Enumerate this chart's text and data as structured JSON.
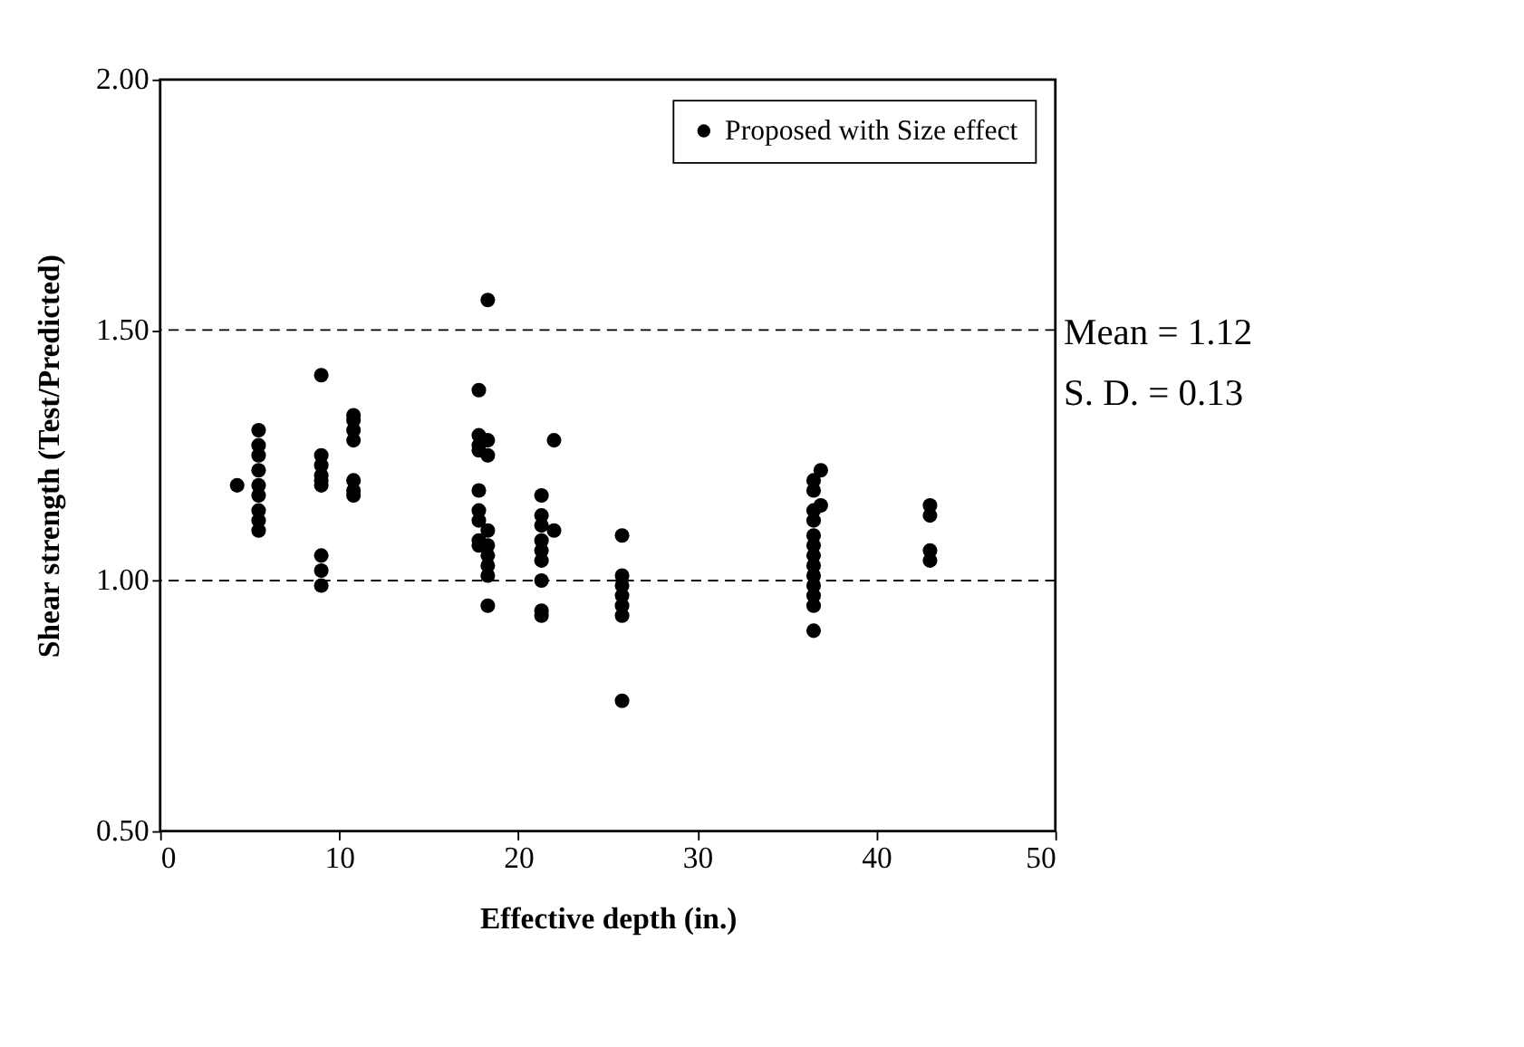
{
  "chart_data": {
    "type": "scatter",
    "xlabel": "Effective depth (in.)",
    "ylabel": "Shear strength (Test/Predicted)",
    "series": [
      {
        "name": "Proposed with Size effect",
        "color": "#000000",
        "x": [
          4.3,
          5.5,
          5.5,
          5.5,
          5.5,
          5.5,
          5.5,
          5.5,
          5.5,
          5.5,
          9,
          9,
          9,
          9,
          9,
          9,
          9,
          9,
          9,
          10.8,
          10.8,
          10.8,
          10.8,
          10.8,
          10.8,
          10.8,
          17.8,
          17.8,
          17.8,
          17.8,
          17.8,
          17.8,
          17.8,
          17.8,
          17.8,
          18.3,
          18.3,
          18.3,
          18.3,
          18.3,
          18.3,
          18.3,
          18.3,
          18.3,
          21.3,
          21.3,
          21.3,
          21.3,
          21.3,
          21.3,
          21.3,
          21.3,
          21.3,
          22,
          22,
          25.8,
          25.8,
          25.8,
          25.8,
          25.8,
          25.8,
          25.8,
          36.5,
          36.5,
          36.5,
          36.5,
          36.5,
          36.5,
          36.5,
          36.5,
          36.5,
          36.5,
          36.5,
          36.5,
          36.5,
          36.9,
          36.9,
          43,
          43,
          43,
          43
        ],
        "values": [
          1.19,
          1.3,
          1.27,
          1.25,
          1.22,
          1.19,
          1.17,
          1.14,
          1.12,
          1.1,
          1.41,
          1.25,
          1.23,
          1.21,
          1.2,
          1.19,
          1.05,
          1.02,
          0.99,
          1.33,
          1.32,
          1.3,
          1.28,
          1.2,
          1.18,
          1.17,
          1.38,
          1.29,
          1.27,
          1.26,
          1.18,
          1.14,
          1.12,
          1.08,
          1.07,
          1.56,
          1.28,
          1.25,
          1.1,
          1.07,
          1.05,
          1.03,
          1.01,
          0.95,
          1.17,
          1.13,
          1.11,
          1.08,
          1.06,
          1.04,
          1.0,
          0.94,
          0.93,
          1.28,
          1.1,
          1.09,
          1.01,
          0.99,
          0.97,
          0.95,
          0.93,
          0.76,
          1.2,
          1.18,
          1.14,
          1.12,
          1.09,
          1.07,
          1.05,
          1.03,
          1.01,
          0.99,
          0.97,
          0.95,
          0.9,
          1.22,
          1.15,
          1.15,
          1.13,
          1.06,
          1.04
        ]
      }
    ],
    "xlim": [
      0,
      50
    ],
    "xticks": [
      0,
      10,
      20,
      30,
      40,
      50
    ],
    "ylim": [
      0.5,
      2.0
    ],
    "yticks": [
      {
        "value": 0.5,
        "label": "0.50"
      },
      {
        "value": 1.0,
        "label": "1.00"
      },
      {
        "value": 1.5,
        "label": "1.50"
      },
      {
        "value": 2.0,
        "label": "2.00"
      }
    ],
    "ref_lines": [
      {
        "axis": "y",
        "value": 1.0,
        "color": "#000000",
        "line_style": "dashed"
      },
      {
        "axis": "y",
        "value": 1.5,
        "color": "#000000",
        "line_style": "dashed"
      }
    ],
    "annotations": [
      "Mean = 1.12",
      "S. D.  = 0.13"
    ],
    "marker": "circle",
    "grid": false,
    "legend": "top right"
  }
}
